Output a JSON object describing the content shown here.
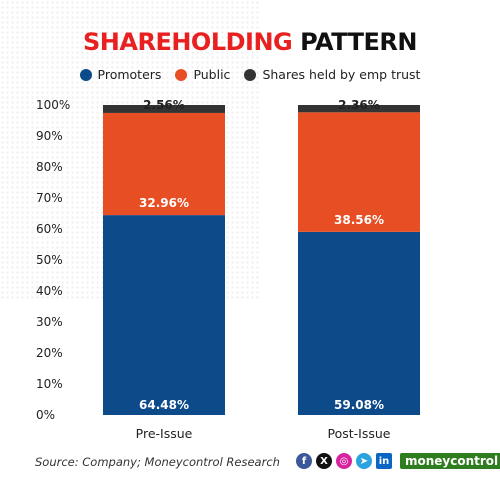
{
  "title": {
    "part1": "SHAREHOLDING",
    "part2": " PATTERN",
    "color1": "#e8201f",
    "color2": "#111111"
  },
  "legend": [
    {
      "label": "Promoters",
      "color": "#0d4a8a"
    },
    {
      "label": "Public",
      "color": "#e84e23"
    },
    {
      "label": "Shares held by emp trust",
      "color": "#333333"
    }
  ],
  "source": "Source: Company; Moneycontrol Research",
  "social": {
    "icons": [
      "facebook-icon",
      "x-icon",
      "instagram-icon",
      "telegram-icon",
      "linkedin-icon"
    ],
    "brand": "moneycontrol"
  },
  "chart_data": {
    "type": "bar",
    "stacked": true,
    "categories": [
      "Pre-Issue",
      "Post-Issue"
    ],
    "series": [
      {
        "name": "Promoters",
        "values": [
          64.48,
          59.08
        ],
        "labels": [
          "64.48%",
          "59.08%"
        ],
        "color": "#0d4a8a"
      },
      {
        "name": "Public",
        "values": [
          32.96,
          38.56
        ],
        "labels": [
          "32.96%",
          "38.56%"
        ],
        "color": "#e84e23"
      },
      {
        "name": "Shares held by emp trust",
        "values": [
          2.56,
          2.36
        ],
        "labels": [
          "2.56%",
          "2.36%"
        ],
        "color": "#333333"
      }
    ],
    "yticks": [
      "0%",
      "10%",
      "20%",
      "30%",
      "40%",
      "50%",
      "60%",
      "70%",
      "80%",
      "90%",
      "100%"
    ],
    "ylim": [
      0,
      100
    ],
    "grid": false,
    "legend_position": "top"
  }
}
